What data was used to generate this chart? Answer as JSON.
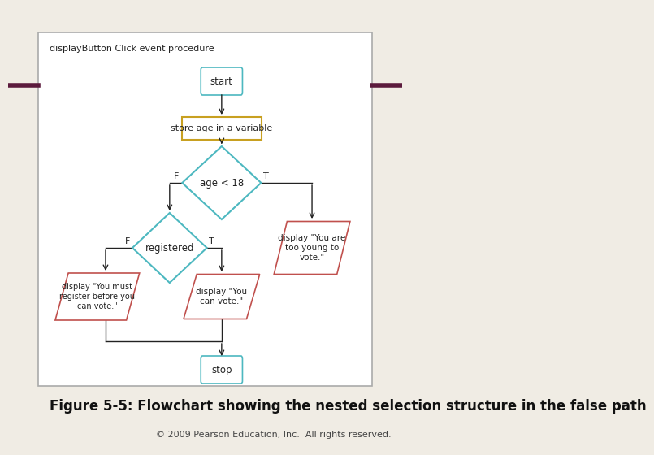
{
  "bg_color": "#f0ece4",
  "box_bg": "#ffffff",
  "box_border": "#888888",
  "title_text": "displayButton Click event procedure",
  "caption": "Figure 5-5: Flowchart showing the nested selection structure in the false path",
  "copyright": "© 2009 Pearson Education, Inc.  All rights reserved.",
  "accent_color": "#5b1a3c",
  "diamond_color": "#4db8c0",
  "parallelogram_border": "#c0504d",
  "rect_border_store": "#c8a020",
  "terminal_border": "#4db8c0",
  "arrow_color": "#222222",
  "text_color": "#222222",
  "font_size_main": 9,
  "font_size_caption": 12,
  "font_size_copyright": 8
}
